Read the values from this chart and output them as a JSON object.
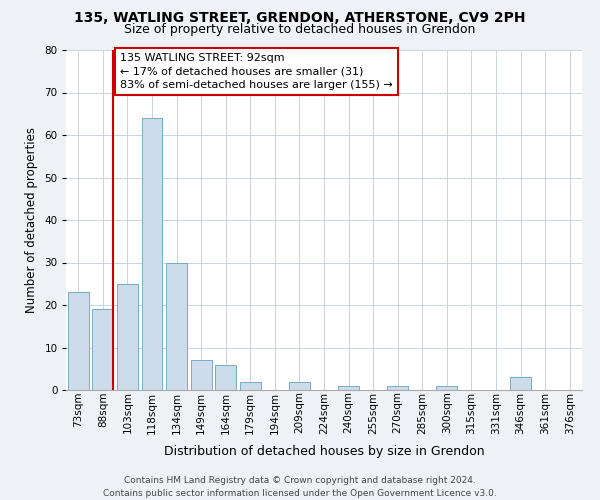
{
  "title": "135, WATLING STREET, GRENDON, ATHERSTONE, CV9 2PH",
  "subtitle": "Size of property relative to detached houses in Grendon",
  "xlabel": "Distribution of detached houses by size in Grendon",
  "ylabel": "Number of detached properties",
  "categories": [
    "73sqm",
    "88sqm",
    "103sqm",
    "118sqm",
    "134sqm",
    "149sqm",
    "164sqm",
    "179sqm",
    "194sqm",
    "209sqm",
    "224sqm",
    "240sqm",
    "255sqm",
    "270sqm",
    "285sqm",
    "300sqm",
    "315sqm",
    "331sqm",
    "346sqm",
    "361sqm",
    "376sqm"
  ],
  "values": [
    23,
    19,
    25,
    64,
    30,
    7,
    6,
    2,
    0,
    2,
    0,
    1,
    0,
    1,
    0,
    1,
    0,
    0,
    3,
    0,
    0
  ],
  "bar_color": "#cddceb",
  "bar_edge_color": "#7aaac8",
  "property_line_color": "#cc0000",
  "property_line_x": 1.4,
  "ylim": [
    0,
    80
  ],
  "yticks": [
    0,
    10,
    20,
    30,
    40,
    50,
    60,
    70,
    80
  ],
  "annotation_title": "135 WATLING STREET: 92sqm",
  "annotation_line1": "← 17% of detached houses are smaller (31)",
  "annotation_line2": "83% of semi-detached houses are larger (155) →",
  "annotation_box_color": "#ffffff",
  "annotation_box_edge": "#cc0000",
  "footer_line1": "Contains HM Land Registry data © Crown copyright and database right 2024.",
  "footer_line2": "Contains public sector information licensed under the Open Government Licence v3.0.",
  "background_color": "#eef2f7",
  "plot_bg_color": "#ffffff",
  "grid_color": "#c8d4e0",
  "title_fontsize": 10,
  "subtitle_fontsize": 9,
  "xlabel_fontsize": 9,
  "ylabel_fontsize": 8.5,
  "tick_fontsize": 7.5,
  "annotation_fontsize": 8,
  "footer_fontsize": 6.5
}
